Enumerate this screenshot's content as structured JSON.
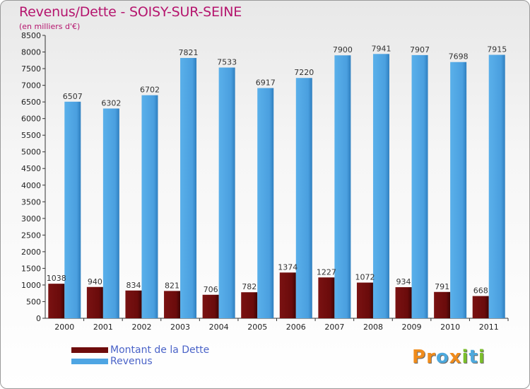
{
  "title": "Revenus/Dette - SOISY-SUR-SEINE",
  "subtitle": "(en milliers d'€)",
  "logo": "Proxiti",
  "colors": {
    "title": "#b5156e",
    "dette": "#6e0c0c",
    "revenus": "#4ea5e3",
    "legend_text": "#4a63c8"
  },
  "chart_data": {
    "type": "bar",
    "title": "Revenus/Dette - SOISY-SUR-SEINE",
    "subtitle": "(en milliers d'€)",
    "xlabel": "",
    "ylabel": "",
    "ylim": [
      0,
      8500
    ],
    "ytick_step": 500,
    "grid": false,
    "legend_position": "bottom-left",
    "categories": [
      "2000",
      "2001",
      "2002",
      "2003",
      "2004",
      "2005",
      "2006",
      "2007",
      "2008",
      "2009",
      "2010",
      "2011"
    ],
    "series": [
      {
        "name": "Montant de la Dette",
        "values": [
          1038,
          940,
          834,
          821,
          706,
          782,
          1374,
          1227,
          1072,
          934,
          791,
          668
        ]
      },
      {
        "name": "Revenus",
        "values": [
          6507,
          6302,
          6702,
          7821,
          7533,
          6917,
          7220,
          7900,
          7941,
          7907,
          7698,
          7915
        ]
      }
    ]
  }
}
